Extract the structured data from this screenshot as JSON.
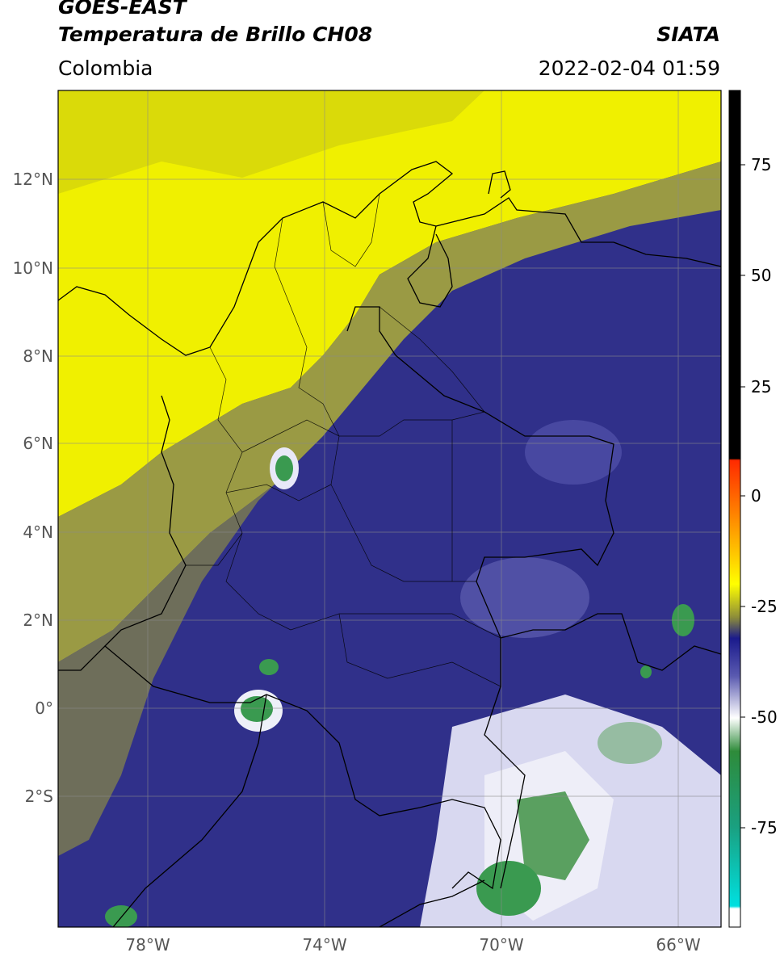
{
  "header": {
    "satellite": "GOES-EAST",
    "product": "Temperatura de Brillo CH08",
    "brand": "SIATA",
    "region": "Colombia",
    "datetime": "2022-02-04 01:59"
  },
  "map": {
    "lat_labels": [
      "12°N",
      "10°N",
      "8°N",
      "6°N",
      "4°N",
      "2°N",
      "0°",
      "2°S"
    ],
    "lon_labels": [
      "78°W",
      "74°W",
      "70°W",
      "66°W"
    ]
  },
  "colorbar": {
    "labels": [
      "75",
      "50",
      "25",
      "0",
      "-25",
      "-50",
      "-75"
    ],
    "colors": {
      "hot": "#000000",
      "red": "#ff2a00",
      "orange": "#ff9a00",
      "yellow": "#ffff00",
      "olive": "#8c8c3a",
      "navy": "#1a1a8c",
      "white": "#ffffff",
      "green": "#2e8b3a",
      "cyan": "#00e0e0"
    }
  }
}
